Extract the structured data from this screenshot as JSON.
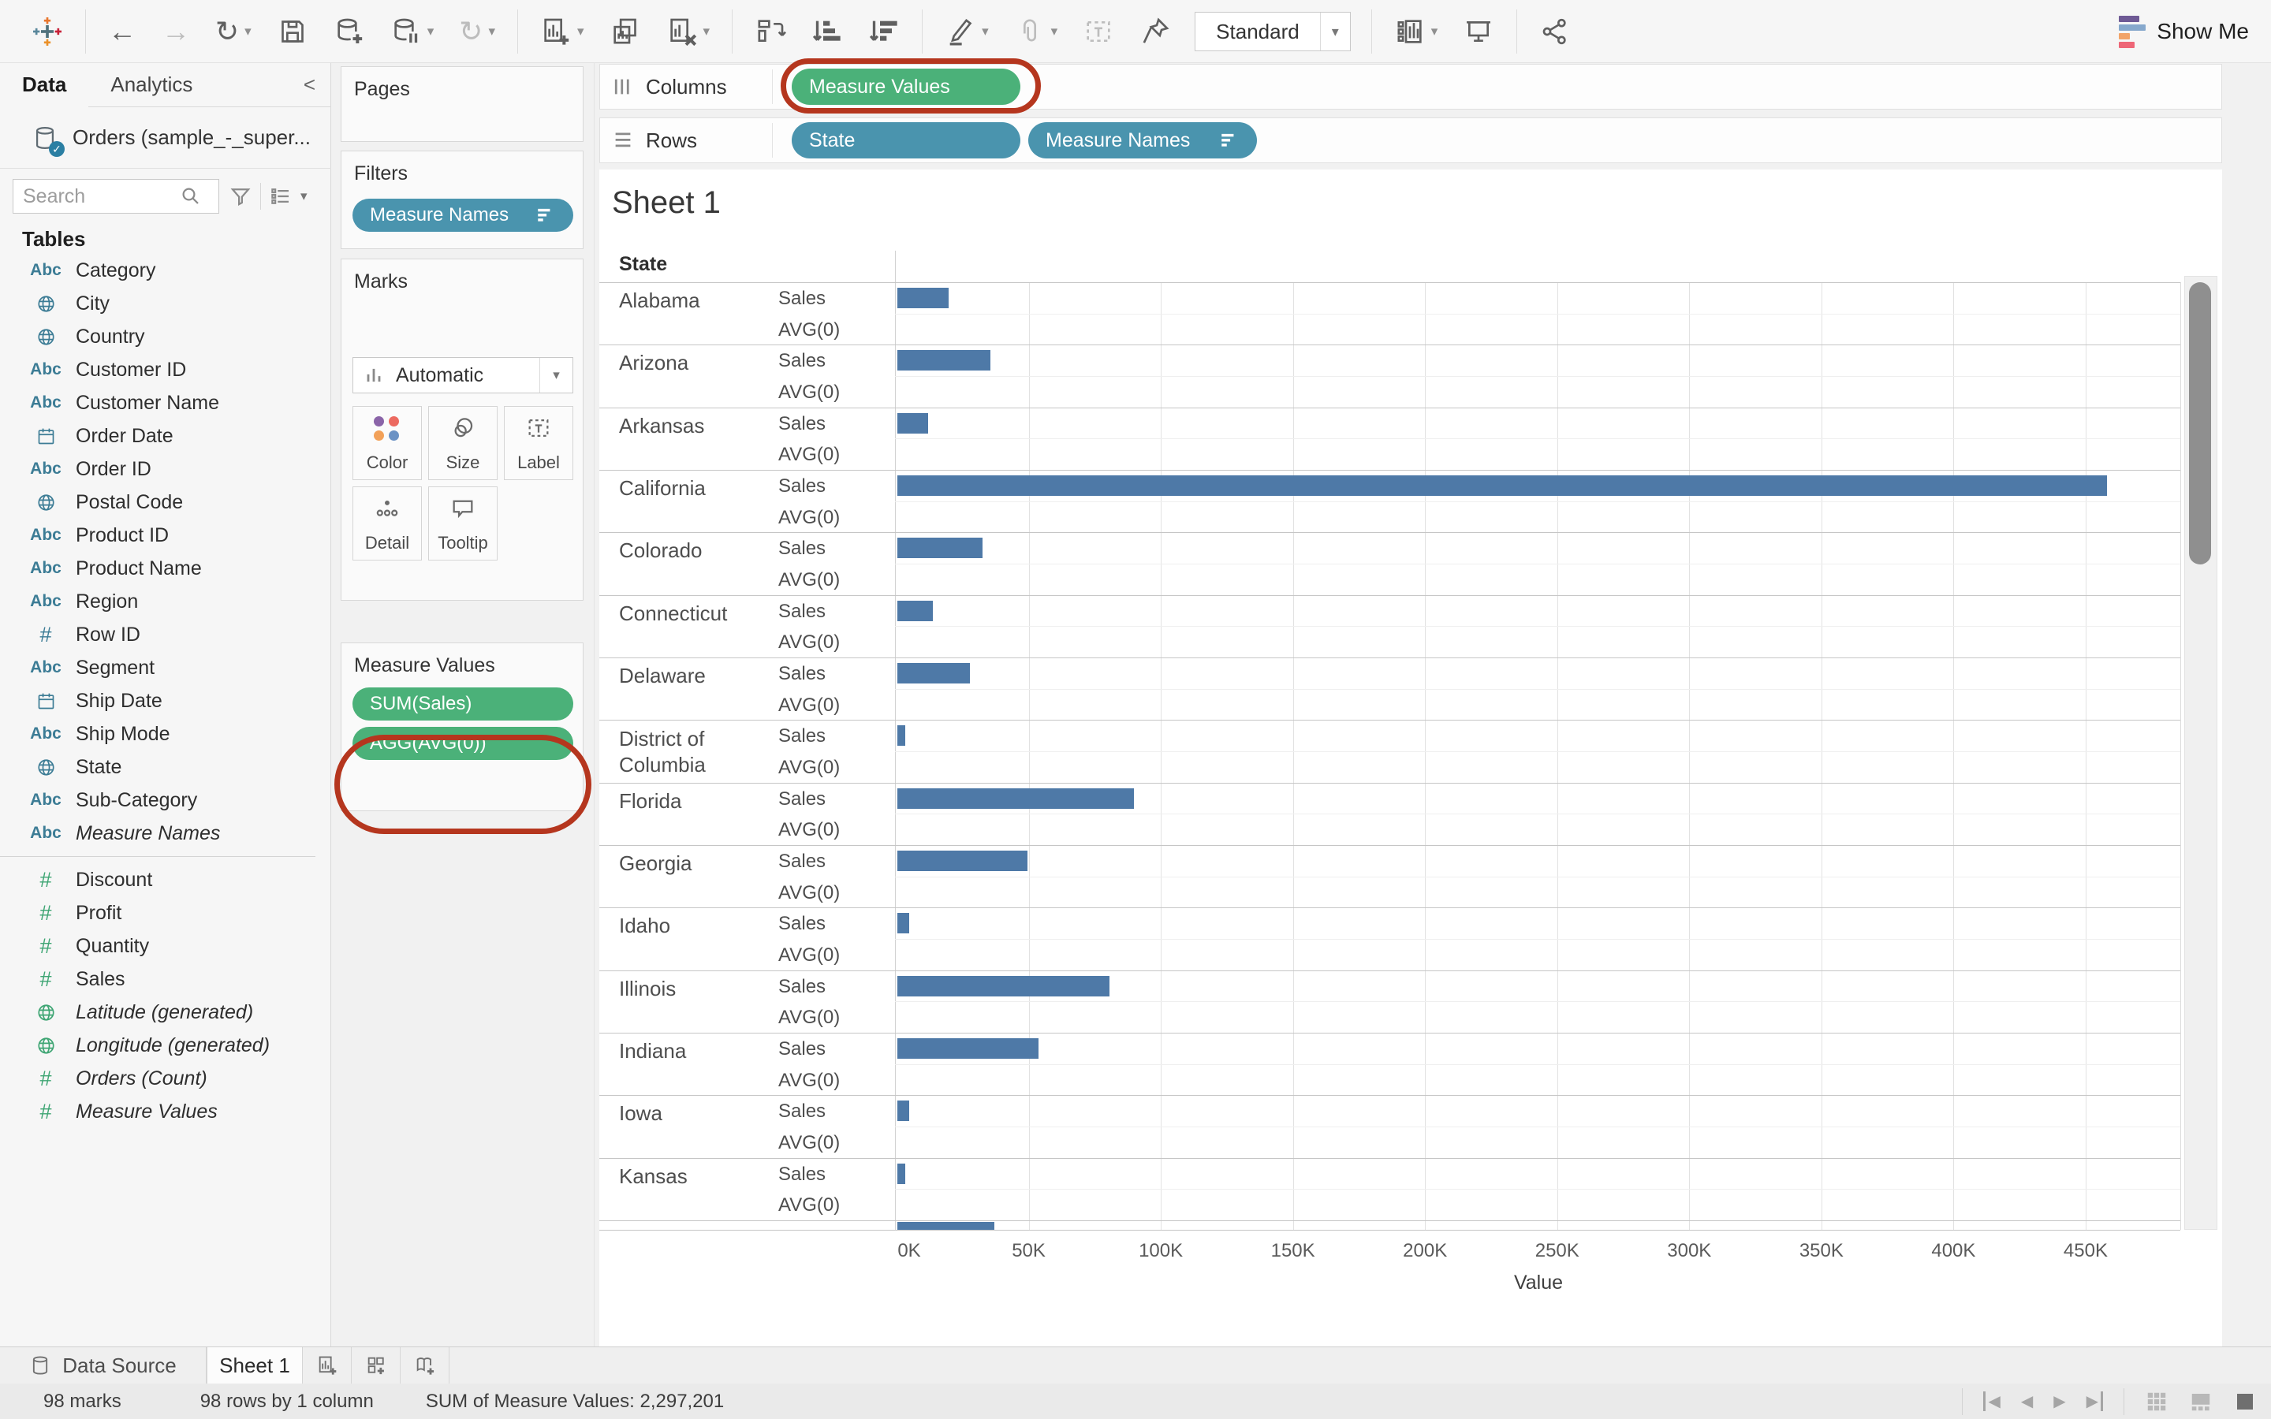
{
  "colors": {
    "pill-blue": "#4a94ae",
    "pill-green": "#4bb179",
    "bar-blue": "#4e79a7",
    "annotation-red": "#b5361e",
    "dim-icon": "#3c7c95",
    "meas-icon": "#3ea573",
    "dot-purple": "#8a64a8",
    "dot-red": "#ec6a60",
    "dot-orange": "#f2a159",
    "dot-blue": "#6b92c4",
    "showme-purple": "#6e5a95",
    "showme-blue": "#86a8cc",
    "showme-orange": "#f2a469",
    "showme-red": "#ee6677"
  },
  "toolbar": {
    "items": [
      {
        "name": "tableau-logo",
        "icon": "logo"
      },
      {
        "sep": true
      },
      {
        "name": "undo-button",
        "glyph": "←"
      },
      {
        "name": "redo-button",
        "glyph": "→",
        "dim": true
      },
      {
        "name": "replay-button",
        "glyph": "↻",
        "caret": true
      },
      {
        "name": "save-button",
        "icon": "save"
      },
      {
        "name": "new-datasource-button",
        "icon": "dbadd"
      },
      {
        "name": "pause-updates-button",
        "icon": "dbpause",
        "caret": true
      },
      {
        "name": "refresh-button",
        "glyph": "↻",
        "dim": true,
        "caret": true
      },
      {
        "sep": true
      },
      {
        "name": "new-worksheet-button",
        "icon": "wsadd",
        "caret": true
      },
      {
        "name": "duplicate-button",
        "icon": "dup"
      },
      {
        "name": "clear-sheet-button",
        "icon": "wsclear",
        "caret": true
      },
      {
        "sep": true
      },
      {
        "name": "swap-rows-columns-button",
        "icon": "swap"
      },
      {
        "name": "sort-ascending-button",
        "icon": "sortasc"
      },
      {
        "name": "sort-descending-button",
        "icon": "sortdesc"
      },
      {
        "sep": true
      },
      {
        "name": "highlight-button",
        "icon": "pen",
        "caret": true
      },
      {
        "name": "group-members-button",
        "icon": "clip",
        "dim": true,
        "caret": true
      },
      {
        "name": "show-mark-labels-button",
        "icon": "textlabel",
        "dim": true
      },
      {
        "name": "fix-axes-button",
        "icon": "pin"
      },
      {
        "name": "fit-dropdown",
        "dropdown": true,
        "label": "Standard"
      },
      {
        "sep": true
      },
      {
        "name": "show-hide-cards-button",
        "icon": "cards",
        "caret": true
      },
      {
        "name": "presentation-mode-button",
        "icon": "present"
      },
      {
        "sep": true
      },
      {
        "name": "share-button",
        "icon": "share"
      }
    ],
    "show_me_label": "Show Me"
  },
  "sidebar": {
    "tabs": {
      "data": "Data",
      "analytics": "Analytics",
      "collapse": "<"
    },
    "datasource": "Orders (sample_-_super...",
    "search_placeholder": "Search",
    "tables_label": "Tables",
    "fields": [
      {
        "label": "Category",
        "icon": "abc"
      },
      {
        "label": "City",
        "icon": "globe"
      },
      {
        "label": "Country",
        "icon": "globe"
      },
      {
        "label": "Customer ID",
        "icon": "abc"
      },
      {
        "label": "Customer Name",
        "icon": "abc"
      },
      {
        "label": "Order Date",
        "icon": "calendar"
      },
      {
        "label": "Order ID",
        "icon": "abc"
      },
      {
        "label": "Postal Code",
        "icon": "globe"
      },
      {
        "label": "Product ID",
        "icon": "abc"
      },
      {
        "label": "Product Name",
        "icon": "abc"
      },
      {
        "label": "Region",
        "icon": "abc"
      },
      {
        "label": "Row ID",
        "icon": "hash"
      },
      {
        "label": "Segment",
        "icon": "abc"
      },
      {
        "label": "Ship Date",
        "icon": "calendar"
      },
      {
        "label": "Ship Mode",
        "icon": "abc"
      },
      {
        "label": "State",
        "icon": "globe"
      },
      {
        "label": "Sub-Category",
        "icon": "abc"
      },
      {
        "label": "Measure Names",
        "icon": "abc",
        "italic": true
      },
      {
        "divider": true
      },
      {
        "label": "Discount",
        "icon": "hash",
        "measure": true
      },
      {
        "label": "Profit",
        "icon": "hash",
        "measure": true
      },
      {
        "label": "Quantity",
        "icon": "hash",
        "measure": true
      },
      {
        "label": "Sales",
        "icon": "hash",
        "measure": true
      },
      {
        "label": "Latitude (generated)",
        "icon": "globe",
        "measure": true,
        "italic": true
      },
      {
        "label": "Longitude (generated)",
        "icon": "globe",
        "measure": true,
        "italic": true
      },
      {
        "label": "Orders (Count)",
        "icon": "hash",
        "measure": true,
        "italic": true
      },
      {
        "label": "Measure Values",
        "icon": "hash",
        "measure": true,
        "italic": true
      }
    ]
  },
  "cards": {
    "pages": {
      "title": "Pages"
    },
    "filters": {
      "title": "Filters",
      "pill": "Measure Names"
    },
    "marks": {
      "title": "Marks",
      "mark_type": "Automatic",
      "buttons": [
        {
          "label": "Color",
          "icon": "colordots"
        },
        {
          "label": "Size",
          "icon": "size"
        },
        {
          "label": "Label",
          "icon": "textlabel"
        },
        {
          "label": "Detail",
          "icon": "detail"
        },
        {
          "label": "Tooltip",
          "icon": "tooltip"
        }
      ]
    },
    "measure_values": {
      "title": "Measure Values",
      "pills": [
        "SUM(Sales)",
        "AGG(AVG(0))"
      ]
    }
  },
  "shelves": {
    "columns": {
      "label": "Columns",
      "pills": [
        {
          "label": "Measure Values",
          "color": "green"
        }
      ]
    },
    "rows": {
      "label": "Rows",
      "pills": [
        {
          "label": "State",
          "color": "blue"
        },
        {
          "label": "Measure Names",
          "color": "blue",
          "sorted": true
        }
      ]
    }
  },
  "sheet": {
    "title": "Sheet 1"
  },
  "chart_data": {
    "type": "bar",
    "title": "Sheet 1",
    "row_header": "State",
    "categories": [
      "Alabama",
      "Arizona",
      "Arkansas",
      "California",
      "Colorado",
      "Connecticut",
      "Delaware",
      "District of Columbia",
      "Florida",
      "Georgia",
      "Idaho",
      "Illinois",
      "Indiana",
      "Iowa",
      "Kansas"
    ],
    "series": [
      {
        "name": "Sales",
        "values": [
          19511,
          35282,
          11678,
          457688,
          32108,
          13384,
          27451,
          2865,
          89474,
          49096,
          4382,
          80166,
          53555,
          4580,
          2914
        ]
      },
      {
        "name": "AVG(0)",
        "values": [
          0,
          0,
          0,
          0,
          0,
          0,
          0,
          0,
          0,
          0,
          0,
          0,
          0,
          0,
          0
        ]
      }
    ],
    "partial_next_bar_value": 36591,
    "xlabel": "Value",
    "tick_labels": [
      "0K",
      "50K",
      "100K",
      "150K",
      "200K",
      "250K",
      "300K",
      "350K",
      "400K",
      "450K"
    ],
    "tick_interval": 50000,
    "xlim": [
      0,
      486000
    ],
    "grid": true,
    "legend": "none"
  },
  "bottom_tabs": {
    "datasource": "Data Source",
    "sheet1": "Sheet 1"
  },
  "status_bar": {
    "marks": "98 marks",
    "rows": "98 rows by 1 column",
    "sum": "SUM of Measure Values: 2,297,201"
  }
}
